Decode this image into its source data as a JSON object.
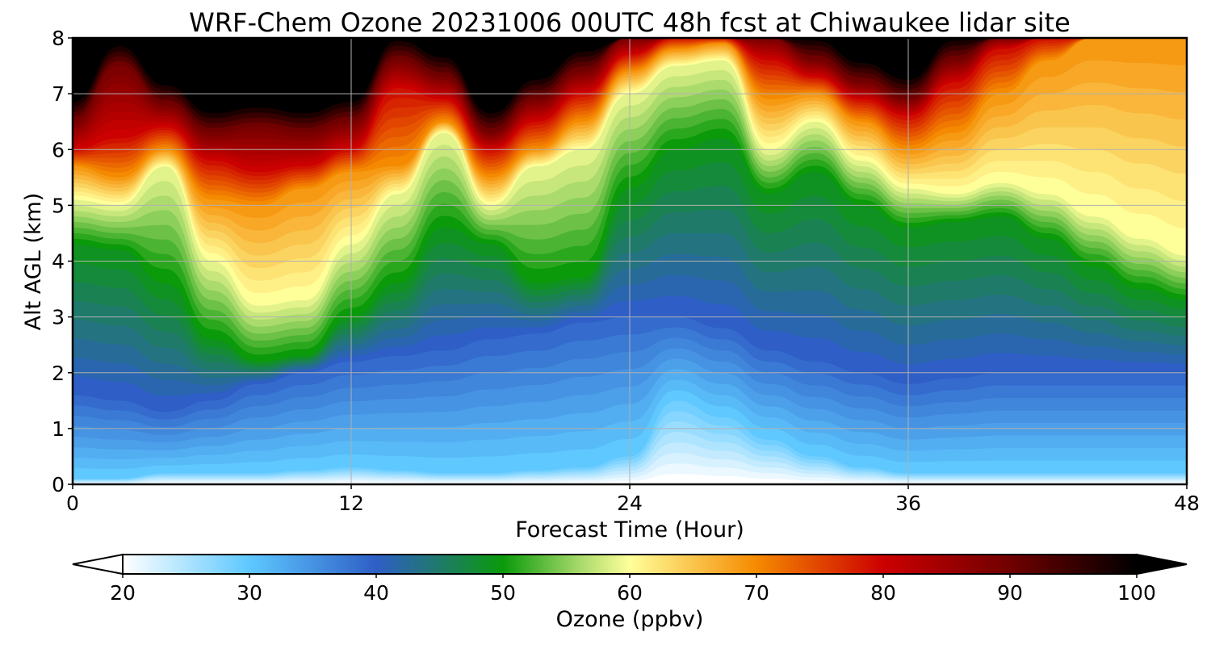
{
  "chart_data": {
    "type": "heatmap",
    "title": "WRF-Chem Ozone  20231006 00UTC 48h fcst at Chiwaukee lidar site",
    "xlabel": "Forecast Time (Hour)",
    "ylabel": "Alt AGL (km)",
    "xlim": [
      0,
      48
    ],
    "ylim": [
      0,
      8
    ],
    "x_ticks": [
      "0",
      "12",
      "24",
      "36",
      "48"
    ],
    "y_ticks": [
      "0",
      "1",
      "2",
      "3",
      "4",
      "5",
      "6",
      "7",
      "8"
    ],
    "grid": true,
    "colorbar": {
      "label": "Ozone  (ppbv)",
      "range": [
        20,
        100
      ],
      "ticks": [
        "20",
        "30",
        "40",
        "50",
        "60",
        "70",
        "80",
        "90",
        "100"
      ],
      "extend": "both",
      "colors": [
        {
          "v": 20,
          "c": "#ffffff"
        },
        {
          "v": 30,
          "c": "#5ec8ff"
        },
        {
          "v": 40,
          "c": "#2e5ec6"
        },
        {
          "v": 45,
          "c": "#1f7a6a"
        },
        {
          "v": 50,
          "c": "#0a9a0a"
        },
        {
          "v": 56,
          "c": "#a6d96a"
        },
        {
          "v": 60,
          "c": "#ffff9a"
        },
        {
          "v": 70,
          "c": "#f58a00"
        },
        {
          "v": 80,
          "c": "#cc0000"
        },
        {
          "v": 90,
          "c": "#700000"
        },
        {
          "v": 100,
          "c": "#000000"
        }
      ]
    },
    "times": [
      0,
      2,
      4,
      6,
      8,
      10,
      12,
      14,
      16,
      18,
      20,
      22,
      24,
      26,
      28,
      30,
      32,
      34,
      36,
      38,
      40,
      42,
      44,
      46,
      48
    ],
    "contours": [
      {
        "value": 30,
        "alt_km": [
          0.1,
          0.1,
          0.2,
          0.2,
          0.2,
          0.25,
          0.3,
          0.25,
          0.2,
          0.2,
          0.25,
          0.3,
          0.5,
          1.5,
          1.2,
          0.8,
          0.5,
          0.3,
          0.2,
          0.2,
          0.2,
          0.2,
          0.2,
          0.2,
          0.2
        ]
      },
      {
        "value": 40,
        "alt_km": [
          1.6,
          1.5,
          1.3,
          1.5,
          1.8,
          2.0,
          2.2,
          2.3,
          2.4,
          2.6,
          2.7,
          2.9,
          3.0,
          3.0,
          2.8,
          2.4,
          2.2,
          2.0,
          1.8,
          1.9,
          2.0,
          2.0,
          2.0,
          2.0,
          2.0
        ]
      },
      {
        "value": 50,
        "alt_km": [
          4.3,
          4.2,
          3.6,
          2.6,
          2.2,
          2.3,
          3.0,
          3.6,
          4.6,
          4.3,
          3.6,
          3.7,
          5.3,
          6.0,
          6.2,
          5.2,
          5.6,
          5.0,
          4.6,
          4.7,
          4.8,
          4.4,
          3.9,
          3.5,
          3.3
        ]
      },
      {
        "value": 60,
        "alt_km": [
          5.1,
          5.0,
          5.7,
          4.0,
          3.2,
          3.3,
          4.3,
          5.2,
          6.3,
          5.0,
          5.7,
          6.0,
          7.0,
          7.5,
          7.6,
          6.0,
          6.5,
          5.8,
          5.3,
          5.2,
          5.4,
          5.2,
          4.8,
          4.4,
          4.1
        ]
      },
      {
        "value": 70,
        "alt_km": [
          5.7,
          5.5,
          6.0,
          5.1,
          5.0,
          5.3,
          5.6,
          5.7,
          6.5,
          5.5,
          6.0,
          6.5,
          7.4,
          7.8,
          7.9,
          6.9,
          7.0,
          6.5,
          6.0,
          6.3,
          7.0,
          7.6,
          8.0,
          8.0,
          8.0
        ]
      },
      {
        "value": 80,
        "alt_km": [
          6.0,
          6.2,
          6.4,
          5.8,
          5.6,
          5.7,
          6.0,
          7.1,
          6.9,
          6.0,
          6.5,
          7.0,
          7.7,
          8.0,
          8.0,
          7.6,
          7.3,
          6.9,
          6.6,
          7.2,
          7.8,
          8.0,
          8.0,
          8.0,
          8.0
        ]
      },
      {
        "value": 90,
        "alt_km": [
          6.5,
          7.5,
          6.8,
          6.3,
          6.4,
          6.3,
          6.5,
          7.6,
          7.3,
          6.3,
          6.9,
          7.4,
          8.0,
          8.0,
          8.0,
          8.0,
          7.6,
          7.2,
          6.9,
          7.6,
          8.0,
          8.0,
          8.0,
          8.0,
          8.0
        ]
      }
    ]
  }
}
